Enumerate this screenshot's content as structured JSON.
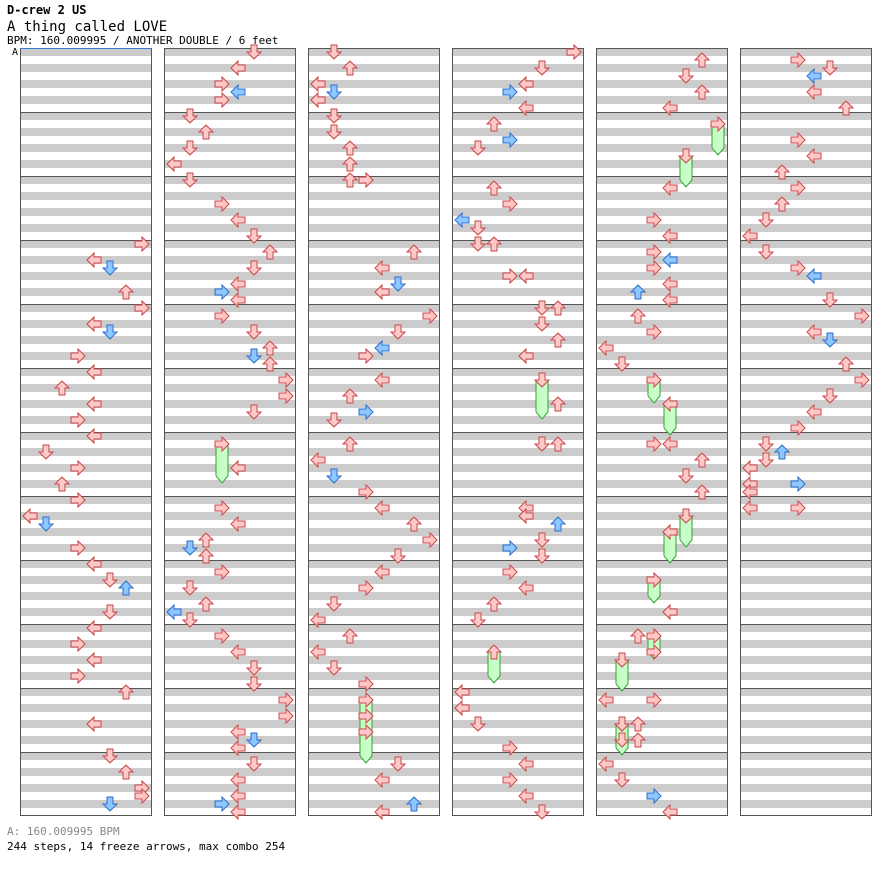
{
  "header": {
    "pack": "D-crew 2 US",
    "song_title": "A thing called LOVE",
    "meta_line": "BPM: 160.009995 / ANOTHER DOUBLE / 6 feet",
    "bpm_marker": "A"
  },
  "footer": {
    "bpm_line": "A: 160.009995 BPM",
    "stats_line": "244 steps, 14 freeze arrows, max combo 254"
  },
  "chart": {
    "columns": 6,
    "measures_per_column": 12,
    "lanes": 8,
    "colors": {
      "stripe": "#cccccc",
      "border": "#555555",
      "note_red_fill": "#ffc8c8",
      "note_red_stroke": "#c84848",
      "note_blue_fill": "#8ec6ff",
      "note_blue_stroke": "#2a6fc8",
      "freeze_fill": "#c8ffc8",
      "freeze_stroke": "#30a030"
    },
    "note_encoding": "[column, measure (fractional, 1/8 per row), lane 0-7 (L,D,U,R on P1 then P2), kind r=red b=blue]",
    "freeze_encoding": "[column, start measure, end measure, lane]",
    "notes": [
      [
        0,
        3.0,
        7,
        "r"
      ],
      [
        0,
        3.25,
        4,
        "r"
      ],
      [
        0,
        3.375,
        5,
        "b"
      ],
      [
        0,
        3.75,
        6,
        "r"
      ],
      [
        0,
        4.0,
        7,
        "r"
      ],
      [
        0,
        4.25,
        4,
        "r"
      ],
      [
        0,
        4.375,
        5,
        "b"
      ],
      [
        0,
        4.75,
        3,
        "r"
      ],
      [
        0,
        5.0,
        4,
        "r"
      ],
      [
        0,
        5.25,
        2,
        "r"
      ],
      [
        0,
        5.5,
        4,
        "r"
      ],
      [
        0,
        5.75,
        3,
        "r"
      ],
      [
        0,
        6.0,
        4,
        "r"
      ],
      [
        0,
        6.25,
        1,
        "r"
      ],
      [
        0,
        6.5,
        3,
        "r"
      ],
      [
        0,
        6.75,
        2,
        "r"
      ],
      [
        0,
        7.0,
        3,
        "r"
      ],
      [
        0,
        7.25,
        0,
        "r"
      ],
      [
        0,
        7.375,
        1,
        "b"
      ],
      [
        0,
        7.75,
        3,
        "r"
      ],
      [
        0,
        8.0,
        4,
        "r"
      ],
      [
        0,
        8.25,
        5,
        "r"
      ],
      [
        0,
        8.375,
        6,
        "b"
      ],
      [
        0,
        8.75,
        5,
        "r"
      ],
      [
        0,
        9.0,
        4,
        "r"
      ],
      [
        0,
        9.25,
        3,
        "r"
      ],
      [
        0,
        9.5,
        4,
        "r"
      ],
      [
        0,
        9.75,
        3,
        "r"
      ],
      [
        0,
        10.0,
        6,
        "r"
      ],
      [
        0,
        10.5,
        4,
        "r"
      ],
      [
        0,
        11.0,
        5,
        "r"
      ],
      [
        0,
        11.25,
        6,
        "r"
      ],
      [
        0,
        11.5,
        7,
        "r"
      ],
      [
        0,
        11.625,
        7,
        "r"
      ],
      [
        0,
        11.75,
        5,
        "b"
      ],
      [
        1,
        0.0,
        5,
        "r"
      ],
      [
        1,
        0.25,
        4,
        "r"
      ],
      [
        1,
        0.5,
        3,
        "r"
      ],
      [
        1,
        0.625,
        4,
        "b"
      ],
      [
        1,
        0.75,
        3,
        "r"
      ],
      [
        1,
        1.0,
        1,
        "r"
      ],
      [
        1,
        1.25,
        2,
        "r"
      ],
      [
        1,
        1.5,
        1,
        "r"
      ],
      [
        1,
        1.75,
        0,
        "r"
      ],
      [
        1,
        2.0,
        1,
        "r"
      ],
      [
        1,
        2.375,
        3,
        "r"
      ],
      [
        1,
        2.625,
        4,
        "r"
      ],
      [
        1,
        2.875,
        5,
        "r"
      ],
      [
        1,
        3.125,
        6,
        "r"
      ],
      [
        1,
        3.375,
        5,
        "r"
      ],
      [
        1,
        3.625,
        4,
        "r"
      ],
      [
        1,
        3.75,
        3,
        "b"
      ],
      [
        1,
        3.875,
        4,
        "r"
      ],
      [
        1,
        4.125,
        3,
        "r"
      ],
      [
        1,
        4.375,
        5,
        "r"
      ],
      [
        1,
        4.625,
        6,
        "r"
      ],
      [
        1,
        4.75,
        5,
        "b"
      ],
      [
        1,
        4.875,
        6,
        "r"
      ],
      [
        1,
        5.125,
        7,
        "r"
      ],
      [
        1,
        5.375,
        7,
        "r"
      ],
      [
        1,
        5.625,
        5,
        "r"
      ],
      [
        1,
        6.5,
        4,
        "r"
      ],
      [
        1,
        7.125,
        3,
        "r"
      ],
      [
        1,
        7.375,
        4,
        "r"
      ],
      [
        1,
        7.625,
        2,
        "r"
      ],
      [
        1,
        7.75,
        1,
        "b"
      ],
      [
        1,
        7.875,
        2,
        "r"
      ],
      [
        1,
        8.125,
        3,
        "r"
      ],
      [
        1,
        8.375,
        1,
        "r"
      ],
      [
        1,
        8.625,
        2,
        "r"
      ],
      [
        1,
        8.75,
        0,
        "b"
      ],
      [
        1,
        8.875,
        1,
        "r"
      ],
      [
        1,
        9.125,
        3,
        "r"
      ],
      [
        1,
        9.375,
        4,
        "r"
      ],
      [
        1,
        9.625,
        5,
        "r"
      ],
      [
        1,
        9.875,
        5,
        "r"
      ],
      [
        1,
        10.125,
        7,
        "r"
      ],
      [
        1,
        10.375,
        7,
        "r"
      ],
      [
        1,
        10.625,
        4,
        "r"
      ],
      [
        1,
        10.75,
        5,
        "b"
      ],
      [
        1,
        10.875,
        4,
        "r"
      ],
      [
        1,
        11.125,
        5,
        "r"
      ],
      [
        1,
        11.375,
        4,
        "r"
      ],
      [
        1,
        11.625,
        4,
        "r"
      ],
      [
        1,
        11.75,
        3,
        "b"
      ],
      [
        1,
        11.875,
        4,
        "r"
      ],
      [
        2,
        0.0,
        1,
        "r"
      ],
      [
        2,
        0.25,
        2,
        "r"
      ],
      [
        2,
        0.5,
        0,
        "r"
      ],
      [
        2,
        0.625,
        1,
        "b"
      ],
      [
        2,
        0.75,
        0,
        "r"
      ],
      [
        2,
        1.0,
        1,
        "r"
      ],
      [
        2,
        1.25,
        1,
        "r"
      ],
      [
        2,
        1.5,
        2,
        "r"
      ],
      [
        2,
        1.75,
        2,
        "r"
      ],
      [
        2,
        2.0,
        2,
        "r"
      ],
      [
        2,
        2.0,
        3,
        "r"
      ],
      [
        2,
        3.125,
        6,
        "r"
      ],
      [
        2,
        3.375,
        4,
        "r"
      ],
      [
        2,
        3.625,
        5,
        "b"
      ],
      [
        2,
        3.75,
        4,
        "r"
      ],
      [
        2,
        4.125,
        7,
        "r"
      ],
      [
        2,
        4.375,
        5,
        "r"
      ],
      [
        2,
        4.625,
        4,
        "b"
      ],
      [
        2,
        4.75,
        3,
        "r"
      ],
      [
        2,
        5.125,
        4,
        "r"
      ],
      [
        2,
        5.375,
        2,
        "r"
      ],
      [
        2,
        5.625,
        3,
        "b"
      ],
      [
        2,
        5.75,
        1,
        "r"
      ],
      [
        2,
        6.125,
        2,
        "r"
      ],
      [
        2,
        6.375,
        0,
        "r"
      ],
      [
        2,
        6.625,
        1,
        "b"
      ],
      [
        2,
        6.875,
        3,
        "r"
      ],
      [
        2,
        7.125,
        4,
        "r"
      ],
      [
        2,
        7.375,
        6,
        "r"
      ],
      [
        2,
        7.625,
        7,
        "r"
      ],
      [
        2,
        7.875,
        5,
        "r"
      ],
      [
        2,
        8.125,
        4,
        "r"
      ],
      [
        2,
        8.375,
        3,
        "r"
      ],
      [
        2,
        8.625,
        1,
        "r"
      ],
      [
        2,
        8.875,
        0,
        "r"
      ],
      [
        2,
        9.125,
        2,
        "r"
      ],
      [
        2,
        9.375,
        0,
        "r"
      ],
      [
        2,
        9.625,
        1,
        "r"
      ],
      [
        2,
        9.875,
        3,
        "r"
      ],
      [
        2,
        10.375,
        3,
        "r"
      ],
      [
        2,
        10.625,
        3,
        "r"
      ],
      [
        2,
        11.125,
        5,
        "r"
      ],
      [
        2,
        11.375,
        4,
        "r"
      ],
      [
        2,
        11.75,
        6,
        "b"
      ],
      [
        2,
        11.875,
        4,
        "r"
      ],
      [
        3,
        0.0,
        7,
        "r"
      ],
      [
        3,
        0.25,
        5,
        "r"
      ],
      [
        3,
        0.5,
        4,
        "r"
      ],
      [
        3,
        0.625,
        3,
        "b"
      ],
      [
        3,
        0.875,
        4,
        "r"
      ],
      [
        3,
        1.125,
        2,
        "r"
      ],
      [
        3,
        1.375,
        3,
        "b"
      ],
      [
        3,
        1.5,
        1,
        "r"
      ],
      [
        3,
        2.125,
        2,
        "r"
      ],
      [
        3,
        2.375,
        3,
        "r"
      ],
      [
        3,
        2.625,
        0,
        "b"
      ],
      [
        3,
        2.75,
        1,
        "r"
      ],
      [
        3,
        3.0,
        1,
        "r"
      ],
      [
        3,
        3.0,
        2,
        "r"
      ],
      [
        3,
        3.5,
        3,
        "r"
      ],
      [
        3,
        3.5,
        4,
        "r"
      ],
      [
        3,
        4.0,
        5,
        "r"
      ],
      [
        3,
        4.0,
        6,
        "r"
      ],
      [
        3,
        4.25,
        5,
        "r"
      ],
      [
        3,
        4.5,
        6,
        "r"
      ],
      [
        3,
        4.75,
        4,
        "r"
      ],
      [
        3,
        5.5,
        6,
        "r"
      ],
      [
        3,
        6.125,
        5,
        "r"
      ],
      [
        3,
        6.125,
        6,
        "r"
      ],
      [
        3,
        7.125,
        4,
        "r"
      ],
      [
        3,
        7.25,
        4,
        "r"
      ],
      [
        3,
        7.375,
        6,
        "b"
      ],
      [
        3,
        7.625,
        5,
        "r"
      ],
      [
        3,
        7.75,
        3,
        "b"
      ],
      [
        3,
        7.875,
        5,
        "r"
      ],
      [
        3,
        8.125,
        3,
        "r"
      ],
      [
        3,
        8.375,
        4,
        "r"
      ],
      [
        3,
        8.625,
        2,
        "r"
      ],
      [
        3,
        8.875,
        1,
        "r"
      ],
      [
        3,
        10.0,
        0,
        "r"
      ],
      [
        3,
        10.25,
        0,
        "r"
      ],
      [
        3,
        10.5,
        1,
        "r"
      ],
      [
        3,
        10.875,
        3,
        "r"
      ],
      [
        3,
        11.125,
        4,
        "r"
      ],
      [
        3,
        11.375,
        3,
        "r"
      ],
      [
        3,
        11.625,
        4,
        "r"
      ],
      [
        3,
        11.875,
        5,
        "r"
      ],
      [
        4,
        0.125,
        6,
        "r"
      ],
      [
        4,
        0.375,
        5,
        "r"
      ],
      [
        4,
        0.625,
        6,
        "r"
      ],
      [
        4,
        0.875,
        4,
        "r"
      ],
      [
        4,
        2.125,
        4,
        "r"
      ],
      [
        4,
        2.625,
        3,
        "r"
      ],
      [
        4,
        2.875,
        4,
        "r"
      ],
      [
        4,
        3.125,
        3,
        "r"
      ],
      [
        4,
        3.25,
        4,
        "b"
      ],
      [
        4,
        3.375,
        3,
        "r"
      ],
      [
        4,
        3.625,
        4,
        "r"
      ],
      [
        4,
        3.75,
        2,
        "b"
      ],
      [
        4,
        3.875,
        4,
        "r"
      ],
      [
        4,
        4.125,
        2,
        "r"
      ],
      [
        4,
        4.375,
        3,
        "r"
      ],
      [
        4,
        4.625,
        0,
        "r"
      ],
      [
        4,
        4.875,
        1,
        "r"
      ],
      [
        4,
        6.125,
        3,
        "r"
      ],
      [
        4,
        6.125,
        4,
        "r"
      ],
      [
        4,
        6.375,
        6,
        "r"
      ],
      [
        4,
        6.625,
        5,
        "r"
      ],
      [
        4,
        6.875,
        6,
        "r"
      ],
      [
        4,
        8.75,
        4,
        "r"
      ],
      [
        4,
        9.125,
        2,
        "r"
      ],
      [
        4,
        9.375,
        3,
        "r"
      ],
      [
        4,
        10.125,
        0,
        "r"
      ],
      [
        4,
        10.125,
        3,
        "r"
      ],
      [
        4,
        10.5,
        1,
        "r"
      ],
      [
        4,
        10.5,
        2,
        "r"
      ],
      [
        4,
        10.75,
        1,
        "r"
      ],
      [
        4,
        10.75,
        2,
        "r"
      ],
      [
        4,
        11.125,
        0,
        "r"
      ],
      [
        4,
        11.375,
        1,
        "r"
      ],
      [
        4,
        11.625,
        3,
        "b"
      ],
      [
        4,
        11.875,
        4,
        "r"
      ],
      [
        5,
        0.125,
        3,
        "r"
      ],
      [
        5,
        0.25,
        5,
        "r"
      ],
      [
        5,
        0.375,
        4,
        "b"
      ],
      [
        5,
        0.625,
        4,
        "r"
      ],
      [
        5,
        0.875,
        6,
        "r"
      ],
      [
        5,
        1.375,
        3,
        "r"
      ],
      [
        5,
        1.625,
        4,
        "r"
      ],
      [
        5,
        1.875,
        2,
        "r"
      ],
      [
        5,
        2.125,
        3,
        "r"
      ],
      [
        5,
        2.375,
        2,
        "r"
      ],
      [
        5,
        2.625,
        1,
        "r"
      ],
      [
        5,
        2.875,
        0,
        "r"
      ],
      [
        5,
        3.125,
        1,
        "r"
      ],
      [
        5,
        3.375,
        3,
        "r"
      ],
      [
        5,
        3.5,
        4,
        "b"
      ],
      [
        5,
        3.875,
        5,
        "r"
      ],
      [
        5,
        4.125,
        7,
        "r"
      ],
      [
        5,
        4.375,
        4,
        "r"
      ],
      [
        5,
        4.5,
        5,
        "b"
      ],
      [
        5,
        4.875,
        6,
        "r"
      ],
      [
        5,
        5.125,
        7,
        "r"
      ],
      [
        5,
        5.375,
        5,
        "r"
      ],
      [
        5,
        5.625,
        4,
        "r"
      ],
      [
        5,
        5.875,
        3,
        "r"
      ],
      [
        5,
        6.125,
        1,
        "r"
      ],
      [
        5,
        6.25,
        2,
        "b"
      ],
      [
        5,
        6.375,
        1,
        "r"
      ],
      [
        5,
        6.5,
        0,
        "r"
      ],
      [
        5,
        6.75,
        0,
        "r"
      ],
      [
        5,
        6.75,
        3,
        "b"
      ],
      [
        5,
        6.875,
        0,
        "r"
      ],
      [
        5,
        7.125,
        0,
        "r"
      ],
      [
        5,
        7.125,
        3,
        "r"
      ]
    ],
    "freezes": [
      [
        1,
        6.125,
        6.625,
        3
      ],
      [
        2,
        10.125,
        11.0,
        3
      ],
      [
        3,
        5.125,
        5.625,
        5
      ],
      [
        4,
        1.125,
        1.5,
        7
      ],
      [
        4,
        1.625,
        2.0,
        5
      ],
      [
        4,
        5.125,
        5.375,
        3
      ],
      [
        4,
        5.5,
        5.875,
        4
      ],
      [
        4,
        7.25,
        7.625,
        5
      ],
      [
        4,
        7.5,
        7.875,
        4
      ],
      [
        4,
        8.25,
        8.5,
        3
      ],
      [
        4,
        9.125,
        9.375,
        3
      ],
      [
        4,
        9.5,
        9.875,
        1
      ],
      [
        4,
        10.5,
        10.875,
        1
      ],
      [
        3,
        9.375,
        9.75,
        2
      ]
    ]
  }
}
